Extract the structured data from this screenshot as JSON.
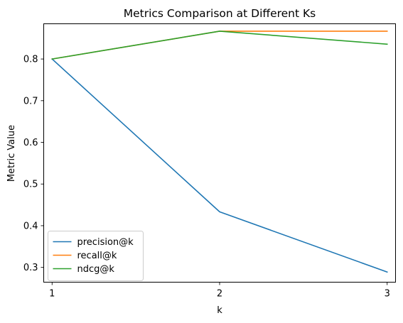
{
  "chart_data": {
    "type": "line",
    "title": "Metrics Comparison at Different Ks",
    "xlabel": "k",
    "ylabel": "Metric Value",
    "x": [
      1,
      2,
      3
    ],
    "xticks": [
      "1",
      "2",
      "3"
    ],
    "yticks": [
      "0.3",
      "0.4",
      "0.5",
      "0.6",
      "0.7",
      "0.8"
    ],
    "xlim": [
      0.95,
      3.05
    ],
    "ylim": [
      0.2645,
      0.8845
    ],
    "grid": false,
    "legend_position": "lower-left",
    "series": [
      {
        "name": "precision@k",
        "color": "#1f77b4",
        "values": [
          0.8,
          0.4333,
          0.2889
        ]
      },
      {
        "name": "recall@k",
        "color": "#ff7f0e",
        "values": [
          0.8,
          0.8667,
          0.8667
        ]
      },
      {
        "name": "ndcg@k",
        "color": "#2ca02c",
        "values": [
          0.8,
          0.8667,
          0.8356
        ]
      }
    ]
  }
}
